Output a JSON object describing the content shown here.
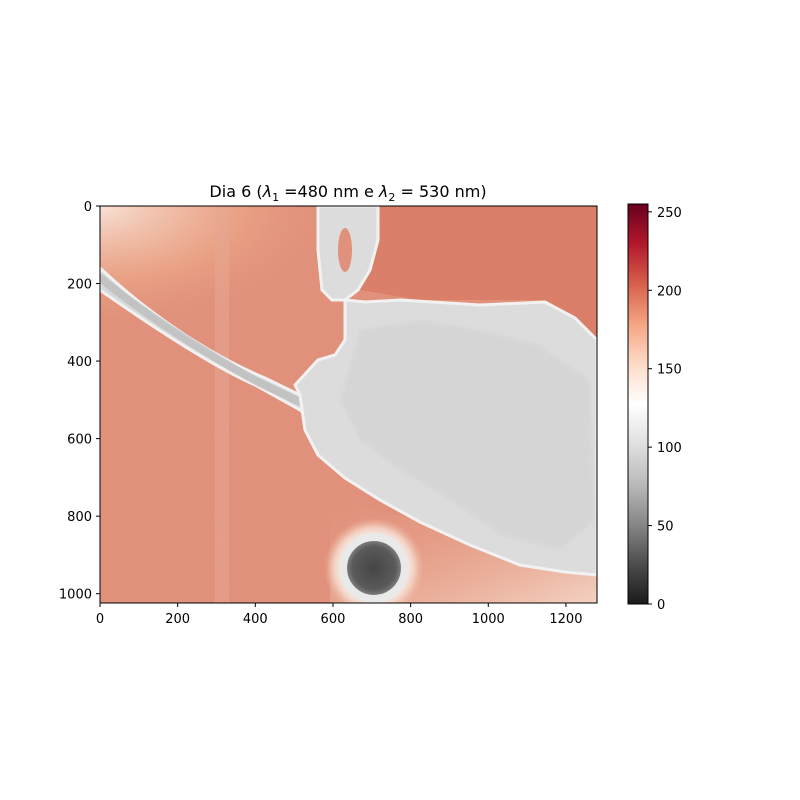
{
  "chart_data": {
    "type": "heatmap",
    "title": "Dia 6 (λ₁ =480 nm e λ₂ = 530 nm)",
    "title_parts": {
      "prefix": "Dia 6 (",
      "sym1": "λ",
      "sub1": "1",
      "mid": " =480 nm e ",
      "sym2": "λ",
      "sub2": "2",
      "suffix": " = 530 nm)"
    },
    "xlabel": "",
    "ylabel": "",
    "xlim": [
      0,
      1280
    ],
    "ylim": [
      1024,
      0
    ],
    "x_ticks": [
      0,
      200,
      400,
      600,
      800,
      1000,
      1200
    ],
    "y_ticks": [
      0,
      200,
      400,
      600,
      800,
      1000
    ],
    "colorbar": {
      "range": [
        0,
        255
      ],
      "ticks": [
        0,
        50,
        100,
        150,
        200,
        250
      ],
      "colormap": "RdGy_r",
      "stops": [
        "#1a1a1a",
        "#4d4d4d",
        "#878787",
        "#bababa",
        "#e0e0e0",
        "#ffffff",
        "#fddbc7",
        "#f4a582",
        "#d6604d",
        "#b2182b",
        "#67001f"
      ]
    },
    "regions": {
      "background_value": 195,
      "background_upper_right_value": 205,
      "background_upper_left_value": 170,
      "background_lower_right_value": 170,
      "cell_body_value": 105,
      "tube_value": 95,
      "dark_sphere_value": 40,
      "sphere_halo_value": 150
    }
  }
}
